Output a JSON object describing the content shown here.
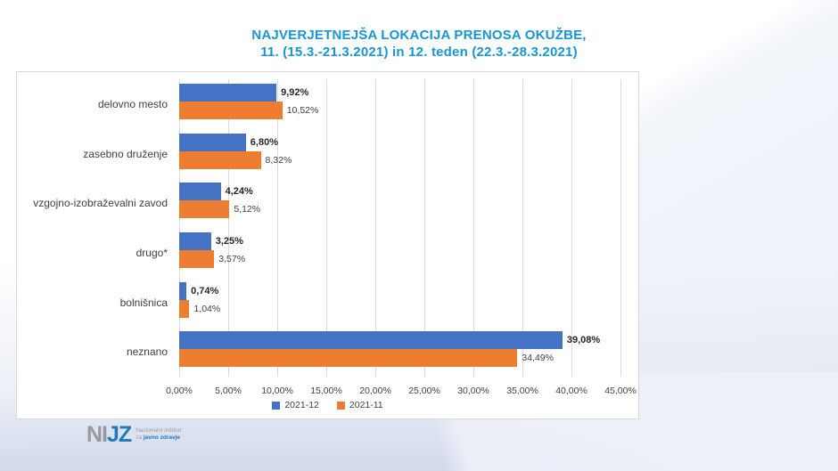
{
  "title": {
    "line1": "NAJVERJETNEJŠA LOKACIJA PRENOSA OKUŽBE,",
    "line2": "11. (15.3.-21.3.2021) in 12. teden (22.3.-28.3.2021)"
  },
  "chart_data": {
    "type": "bar",
    "orientation": "horizontal",
    "title": "NAJVERJETNEJŠA LOKACIJA PRENOSA OKUŽBE, 11. (15.3.-21.3.2021) in 12. teden (22.3.-28.3.2021)",
    "categories": [
      "delovno mesto",
      "zasebno druženje",
      "vzgojno-izobraževalni zavod",
      "drugo*",
      "bolnišnica",
      "neznano"
    ],
    "series": [
      {
        "name": "2021-12",
        "color": "#4472c4",
        "values": [
          9.92,
          6.8,
          4.24,
          3.25,
          0.74,
          39.08
        ],
        "labels": [
          "9,92%",
          "6,80%",
          "4,24%",
          "3,25%",
          "0,74%",
          "39,08%"
        ]
      },
      {
        "name": "2021-11",
        "color": "#ed7d31",
        "values": [
          10.52,
          8.32,
          5.12,
          3.57,
          1.04,
          34.49
        ],
        "labels": [
          "10,52%",
          "8,32%",
          "5,12%",
          "3,57%",
          "1,04%",
          "34,49%"
        ]
      }
    ],
    "xlim": [
      0,
      45
    ],
    "x_ticks": [
      "0,00%",
      "5,00%",
      "10,00%",
      "15,00%",
      "20,00%",
      "25,00%",
      "30,00%",
      "35,00%",
      "40,00%",
      "45,00%"
    ],
    "x_tick_step": 5,
    "grid": true,
    "legend_position": "bottom"
  },
  "legend": [
    {
      "label": "2021-12",
      "color": "#4472c4"
    },
    {
      "label": "2021-11",
      "color": "#ed7d31"
    }
  ],
  "logo": {
    "ni": "NI",
    "jz": "JZ",
    "tagline_line1": "Nacionalni inštitut",
    "tagline_za": "za ",
    "tagline_rest": "javno zdravje"
  },
  "colors": {
    "title_blue": "#1796d2",
    "series_blue": "#4472c4",
    "series_orange": "#ed7d31",
    "gridline": "#d9d9d9",
    "text": "#404040"
  }
}
